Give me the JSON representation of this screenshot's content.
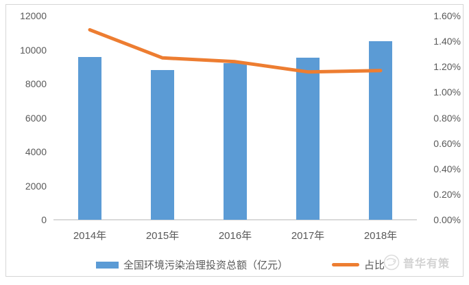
{
  "watermark": {
    "text": "普华有策"
  },
  "colors": {
    "bar": "#5B9BD5",
    "line": "#ED7D31",
    "axis_text": "#595959",
    "axis_line": "#D9D9D9",
    "frame_border": "#D6D6D6",
    "watermark": "#D2D2D2"
  },
  "chart_data": {
    "type": "bar",
    "title": "",
    "categories": [
      "2014年",
      "2015年",
      "2016年",
      "2017年",
      "2018年"
    ],
    "series": [
      {
        "name": "全国环境污染治理投资总额（亿元）",
        "type": "bar",
        "axis": "left",
        "color": "#5B9BD5",
        "values": [
          9575.5,
          8806.3,
          9219.8,
          9539.0,
          10500.0
        ]
      },
      {
        "name": "占比",
        "type": "line",
        "axis": "right",
        "color": "#ED7D31",
        "values": [
          1.49,
          1.27,
          1.24,
          1.16,
          1.17
        ]
      }
    ],
    "left_axis": {
      "min": 0,
      "max": 12000,
      "step": 2000,
      "tick_labels": [
        "0",
        "2000",
        "4000",
        "6000",
        "8000",
        "10000",
        "12000"
      ]
    },
    "right_axis": {
      "min": 0.0,
      "max": 1.6,
      "step": 0.2,
      "unit": "%",
      "tick_labels": [
        "0.00%",
        "0.20%",
        "0.40%",
        "0.60%",
        "0.80%",
        "1.00%",
        "1.20%",
        "1.40%",
        "1.60%"
      ]
    },
    "grid": false,
    "legend_position": "bottom",
    "legend": [
      "全国环境污染治理投资总额（亿元）",
      "占比"
    ]
  }
}
